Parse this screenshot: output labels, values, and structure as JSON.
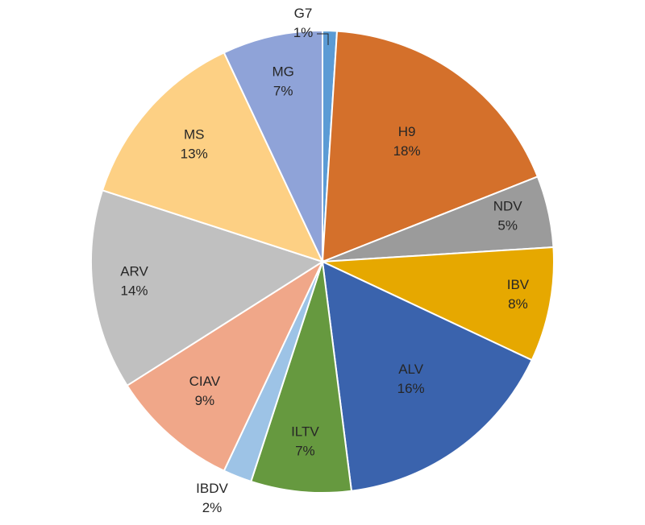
{
  "chart_data": {
    "type": "pie",
    "title": "",
    "start_angle_deg": 0,
    "direction": "clockwise",
    "legend": "none",
    "slices": [
      {
        "name": "G7",
        "value": 1,
        "label": "1%",
        "color": "#5b9bd5"
      },
      {
        "name": "H9",
        "value": 18,
        "label": "18%",
        "color": "#d4702b"
      },
      {
        "name": "NDV",
        "value": 5,
        "label": "5%",
        "color": "#9b9b9b"
      },
      {
        "name": "IBV",
        "value": 8,
        "label": "8%",
        "color": "#e6a800"
      },
      {
        "name": "ALV",
        "value": 16,
        "label": "16%",
        "color": "#3a63ad"
      },
      {
        "name": "ILTV",
        "value": 7,
        "label": "7%",
        "color": "#66993f"
      },
      {
        "name": "IBDV",
        "value": 2,
        "label": "2%",
        "color": "#9dc3e6"
      },
      {
        "name": "CIAV",
        "value": 9,
        "label": "9%",
        "color": "#f0a789"
      },
      {
        "name": "ARV",
        "value": 14,
        "label": "14%",
        "color": "#c0c0c0"
      },
      {
        "name": "MS",
        "value": 13,
        "label": "13%",
        "color": "#fdd084"
      },
      {
        "name": "MG",
        "value": 7,
        "label": "7%",
        "color": "#8fa3d8"
      }
    ]
  }
}
